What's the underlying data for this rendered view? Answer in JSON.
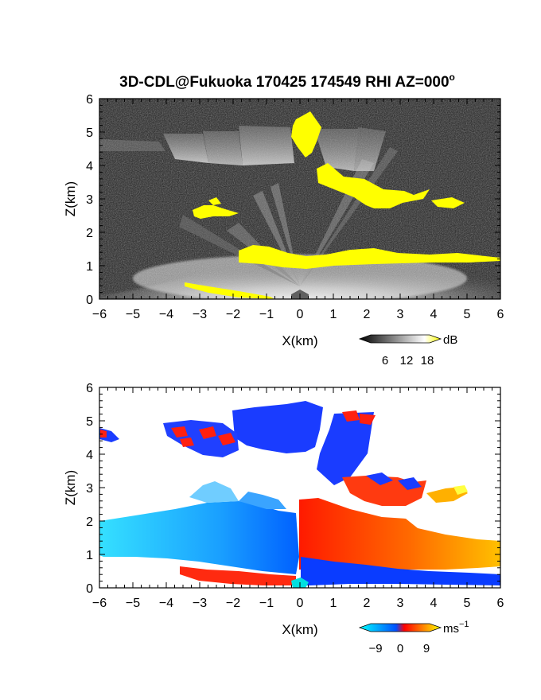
{
  "title": "3D-CDL@Fukuoka 170425 174549 RHI AZ=000",
  "title_degree_mark": "o",
  "chart_data": [
    {
      "type": "heatmap",
      "quantity_units": "dB",
      "xlabel": "X(km)",
      "ylabel": "Z(km)",
      "xlim": [
        -6,
        6
      ],
      "ylim": [
        0,
        6
      ],
      "xticks": [
        "−6",
        "−5",
        "−4",
        "−3",
        "−2",
        "−1",
        "0",
        "1",
        "2",
        "3",
        "4",
        "5",
        "6"
      ],
      "yticks": [
        "0",
        "1",
        "2",
        "3",
        "4",
        "5",
        "6"
      ],
      "colorbar": {
        "ticks": [
          "6",
          "12",
          "18"
        ],
        "unit": "dB",
        "range": [
          0,
          21
        ],
        "colors": [
          "#000000",
          "#ffffff",
          "#ffff00"
        ]
      }
    },
    {
      "type": "heatmap",
      "quantity_units": "ms^-1",
      "xlabel": "X(km)",
      "ylabel": "Z(km)",
      "xlim": [
        -6,
        6
      ],
      "ylim": [
        0,
        6
      ],
      "xticks": [
        "−6",
        "−5",
        "−4",
        "−3",
        "−2",
        "−1",
        "0",
        "1",
        "2",
        "3",
        "4",
        "5",
        "6"
      ],
      "yticks": [
        "0",
        "1",
        "2",
        "3",
        "4",
        "5",
        "6"
      ],
      "colorbar": {
        "ticks": [
          "−9",
          "0",
          "9"
        ],
        "unit": "ms",
        "unit_exponent": "−1",
        "range": [
          -12,
          12
        ],
        "colors": [
          "#00ffff",
          "#0050ff",
          "#ff0000",
          "#ffff00"
        ]
      }
    }
  ]
}
